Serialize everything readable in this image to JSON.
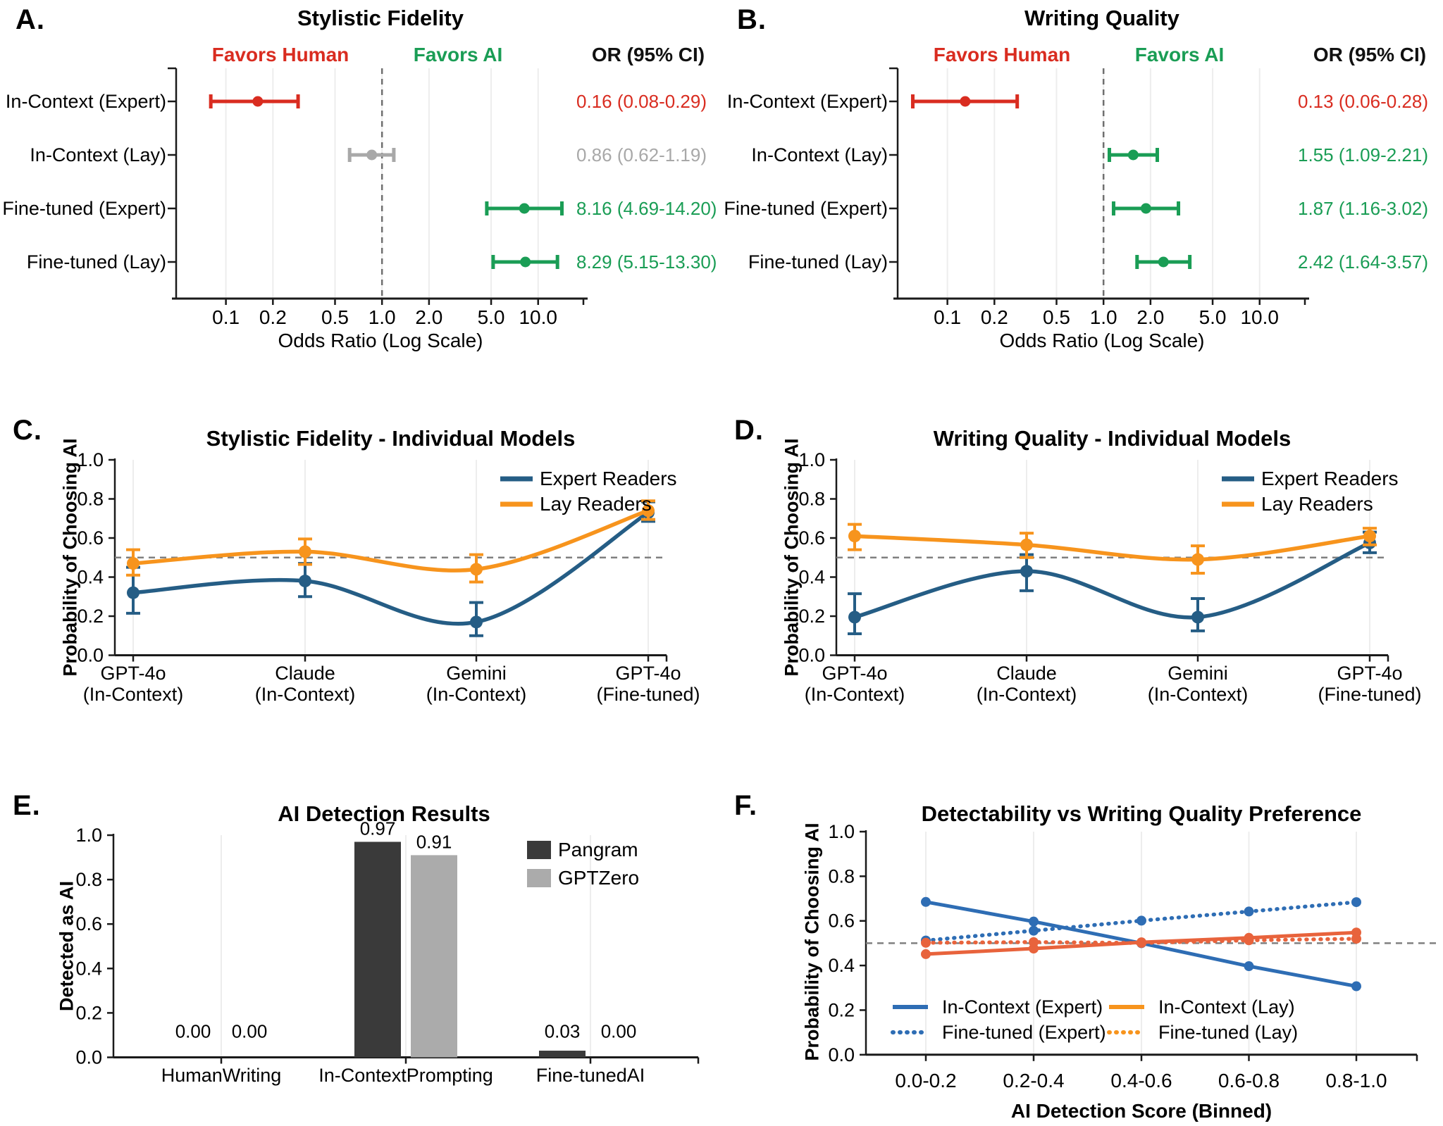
{
  "style": {
    "grid_color": "#ededed",
    "ref_dash_color": "#6f6f6f",
    "axis_color": "#1a1a1a"
  },
  "panels": [
    {
      "letter": "A.",
      "title": "Stylistic Fidelity",
      "chart_data": {
        "type": "forest",
        "headers": {
          "left": "Favors Human",
          "right": "Favors AI",
          "or": "OR (95% CI)"
        },
        "header_colors": {
          "left": "#d92c20",
          "right": "#1a9d55",
          "or": "#111111"
        },
        "xlabel": "Odds Ratio (Log Scale)",
        "xticks": [
          0.1,
          0.2,
          0.5,
          1.0,
          2.0,
          5.0,
          10.0
        ],
        "xtick_labels": [
          "0.1",
          "0.2",
          "0.5",
          "1.0",
          "2.0",
          "5.0",
          "10.0"
        ],
        "xdomain": [
          0.048,
          19.5
        ],
        "ref_line": 1.0,
        "rows": [
          {
            "label": "In-Context (Expert)",
            "or": 0.16,
            "lo": 0.08,
            "hi": 0.29,
            "text": "0.16 (0.08-0.29)",
            "color": "#d92c20"
          },
          {
            "label": "In-Context (Lay)",
            "or": 0.86,
            "lo": 0.62,
            "hi": 1.19,
            "text": "0.86 (0.62-1.19)",
            "color": "#a8a8a8"
          },
          {
            "label": "Fine-tuned (Expert)",
            "or": 8.16,
            "lo": 4.69,
            "hi": 14.2,
            "text": "8.16 (4.69-14.20)",
            "color": "#1a9d55"
          },
          {
            "label": "Fine-tuned (Lay)",
            "or": 8.29,
            "lo": 5.15,
            "hi": 13.3,
            "text": "8.29 (5.15-13.30)",
            "color": "#1a9d55"
          }
        ]
      }
    },
    {
      "letter": "B.",
      "title": "Writing Quality",
      "chart_data": {
        "type": "forest",
        "headers": {
          "left": "Favors Human",
          "right": "Favors AI",
          "or": "OR (95% CI)"
        },
        "header_colors": {
          "left": "#d92c20",
          "right": "#1a9d55",
          "or": "#111111"
        },
        "xlabel": "Odds Ratio (Log Scale)",
        "xticks": [
          0.1,
          0.2,
          0.5,
          1.0,
          2.0,
          5.0,
          10.0
        ],
        "xtick_labels": [
          "0.1",
          "0.2",
          "0.5",
          "1.0",
          "2.0",
          "5.0",
          "10.0"
        ],
        "xdomain": [
          0.048,
          19.5
        ],
        "ref_line": 1.0,
        "rows": [
          {
            "label": "In-Context (Expert)",
            "or": 0.13,
            "lo": 0.06,
            "hi": 0.28,
            "text": "0.13 (0.06-0.28)",
            "color": "#d92c20"
          },
          {
            "label": "In-Context (Lay)",
            "or": 1.55,
            "lo": 1.09,
            "hi": 2.21,
            "text": "1.55 (1.09-2.21)",
            "color": "#1a9d55"
          },
          {
            "label": "Fine-tuned (Expert)",
            "or": 1.87,
            "lo": 1.16,
            "hi": 3.02,
            "text": "1.87 (1.16-3.02)",
            "color": "#1a9d55"
          },
          {
            "label": "Fine-tuned (Lay)",
            "or": 2.42,
            "lo": 1.64,
            "hi": 3.57,
            "text": "2.42 (1.64-3.57)",
            "color": "#1a9d55"
          }
        ]
      }
    },
    {
      "letter": "C.",
      "title": "Stylistic Fidelity - Individual Models",
      "chart_data": {
        "type": "line-ci",
        "ylabel": "Probability of Choosing AI",
        "ylim": [
          0,
          1
        ],
        "yticks": [
          0,
          0.2,
          0.4,
          0.6,
          0.8,
          1.0
        ],
        "ytick_labels": [
          "0.0",
          "0.2",
          "0.4",
          "0.6",
          "0.8",
          "1.0"
        ],
        "ref_y": 0.5,
        "categories": [
          [
            "GPT-4o",
            "(In-Context)"
          ],
          [
            "Claude",
            "(In-Context)"
          ],
          [
            "Gemini",
            "(In-Context)"
          ],
          [
            "GPT-4o",
            "(Fine-tuned)"
          ]
        ],
        "series": [
          {
            "name": "Expert Readers",
            "color": "#255d85",
            "values": [
              0.32,
              0.38,
              0.17,
              0.73
            ],
            "lo": [
              0.215,
              0.3,
              0.1,
              0.685
            ],
            "hi": [
              0.45,
              0.47,
              0.27,
              0.785
            ]
          },
          {
            "name": "Lay Readers",
            "color": "#f7941d",
            "values": [
              0.47,
              0.53,
              0.44,
              0.74
            ],
            "lo": [
              0.41,
              0.465,
              0.375,
              0.695
            ],
            "hi": [
              0.54,
              0.595,
              0.515,
              0.79
            ]
          }
        ]
      }
    },
    {
      "letter": "D.",
      "title": "Writing Quality - Individual Models",
      "chart_data": {
        "type": "line-ci",
        "ylabel": "Probability of Choosing AI",
        "ylim": [
          0,
          1
        ],
        "yticks": [
          0,
          0.2,
          0.4,
          0.6,
          0.8,
          1.0
        ],
        "ytick_labels": [
          "0.0",
          "0.2",
          "0.4",
          "0.6",
          "0.8",
          "1.0"
        ],
        "ref_y": 0.5,
        "categories": [
          [
            "GPT-4o",
            "(In-Context)"
          ],
          [
            "Claude",
            "(In-Context)"
          ],
          [
            "Gemini",
            "(In-Context)"
          ],
          [
            "GPT-4o",
            "(Fine-tuned)"
          ]
        ],
        "series": [
          {
            "name": "Expert Readers",
            "color": "#255d85",
            "values": [
              0.195,
              0.43,
              0.195,
              0.575
            ],
            "lo": [
              0.11,
              0.33,
              0.125,
              0.525
            ],
            "hi": [
              0.315,
              0.515,
              0.29,
              0.63
            ]
          },
          {
            "name": "Lay Readers",
            "color": "#f7941d",
            "values": [
              0.61,
              0.565,
              0.49,
              0.61
            ],
            "lo": [
              0.54,
              0.5,
              0.42,
              0.565
            ],
            "hi": [
              0.67,
              0.625,
              0.56,
              0.65
            ]
          }
        ]
      }
    },
    {
      "letter": "E.",
      "title": "AI Detection Results",
      "chart_data": {
        "type": "bar",
        "ylabel": "Detected as AI",
        "ylim": [
          0,
          1
        ],
        "yticks": [
          0,
          0.2,
          0.4,
          0.6,
          0.8,
          1.0
        ],
        "ytick_labels": [
          "0.0",
          "0.2",
          "0.4",
          "0.6",
          "0.8",
          "1.0"
        ],
        "categories": [
          "HumanWriting",
          "In-ContextPrompting",
          "Fine-tunedAI"
        ],
        "series": [
          {
            "name": "Pangram",
            "color": "#3a3a3a",
            "values": [
              0.0,
              0.97,
              0.03
            ],
            "value_labels": [
              "0.00",
              "0.97",
              "0.03"
            ]
          },
          {
            "name": "GPTZero",
            "color": "#ababab",
            "values": [
              0.0,
              0.91,
              0.0
            ],
            "value_labels": [
              "0.00",
              "0.91",
              "0.00"
            ]
          }
        ]
      }
    },
    {
      "letter": "F.",
      "title": "Detectability vs Writing Quality Preference",
      "chart_data": {
        "type": "line-multi",
        "xlabel": "AI Detection Score (Binned)",
        "ylabel": "Probability of Choosing AI",
        "ylim": [
          0,
          1
        ],
        "yticks": [
          0,
          0.2,
          0.4,
          0.6,
          0.8,
          1.0
        ],
        "ytick_labels": [
          "0.0",
          "0.2",
          "0.4",
          "0.6",
          "0.8",
          "1.0"
        ],
        "ref_y": 0.5,
        "categories": [
          "0.0-0.2",
          "0.2-0.4",
          "0.4-0.6",
          "0.6-0.8",
          "0.8-1.0"
        ],
        "series": [
          {
            "name": "In-Context (Expert)",
            "color": "#2e6db4",
            "legend_color": "#2e6db4",
            "dash": false,
            "values": [
              0.685,
              0.597,
              0.5,
              0.397,
              0.307
            ]
          },
          {
            "name": "Fine-tuned (Expert)",
            "color": "#2e6db4",
            "legend_color": "#2e6db4",
            "dash": true,
            "values": [
              0.512,
              0.556,
              0.601,
              0.642,
              0.684
            ]
          },
          {
            "name": "In-Context (Lay)",
            "color": "#e8633c",
            "legend_color": "#f7941d",
            "dash": false,
            "values": [
              0.451,
              0.476,
              0.504,
              0.524,
              0.548
            ]
          },
          {
            "name": "Fine-tuned (Lay)",
            "color": "#e8633c",
            "legend_color": "#f7941d",
            "dash": true,
            "values": [
              0.502,
              0.505,
              0.501,
              0.513,
              0.52
            ]
          }
        ]
      }
    }
  ]
}
